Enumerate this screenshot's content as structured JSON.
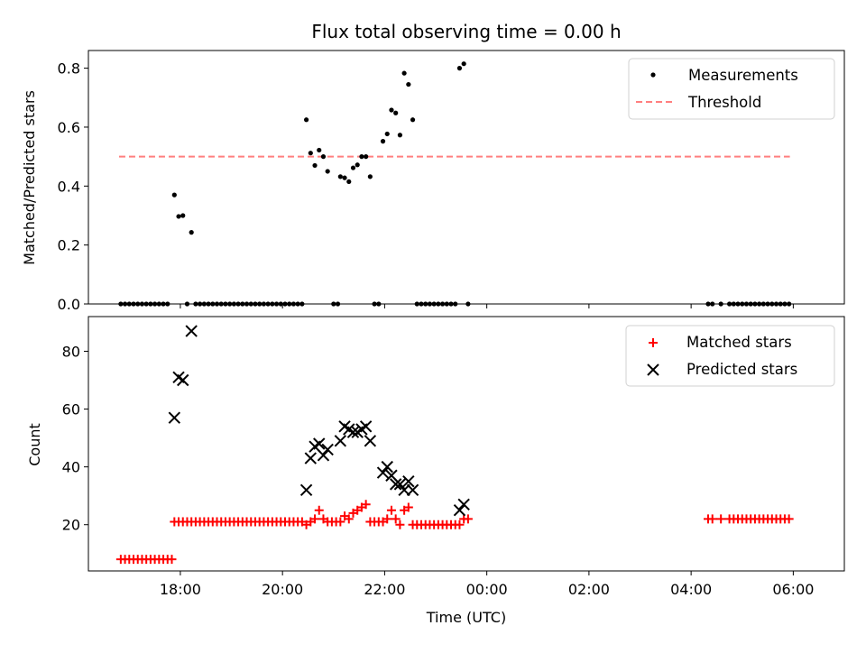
{
  "chart_data": [
    {
      "type": "scatter",
      "title": "Flux total observing time = 0.00 h",
      "ylabel": "Matched/Predicted stars",
      "xlabel": "",
      "ylim": [
        0,
        0.86
      ],
      "xlim": [
        "16:12",
        "07:00"
      ],
      "yticks": [
        "0.0",
        "0.2",
        "0.4",
        "0.6",
        "0.8"
      ],
      "xticks": [
        "18:00",
        "20:00",
        "22:00",
        "00:00",
        "02:00",
        "04:00",
        "06:00"
      ],
      "legend_position": "upper-right",
      "threshold": 0.5,
      "threshold_range": [
        "16:48",
        "05:56"
      ],
      "colors": {
        "measurements": "#000000",
        "threshold": "#ff7f7f"
      },
      "series": [
        {
          "name": "Measurements",
          "points": [
            [
              "16:50",
              0
            ],
            [
              "16:55",
              0
            ],
            [
              "17:00",
              0
            ],
            [
              "17:05",
              0
            ],
            [
              "17:10",
              0
            ],
            [
              "17:15",
              0
            ],
            [
              "17:20",
              0
            ],
            [
              "17:25",
              0
            ],
            [
              "17:30",
              0
            ],
            [
              "17:35",
              0
            ],
            [
              "17:40",
              0
            ],
            [
              "17:45",
              0
            ],
            [
              "17:53",
              0.37
            ],
            [
              "17:58",
              0.297
            ],
            [
              "18:03",
              0.3
            ],
            [
              "18:13",
              0.243
            ],
            [
              "18:08",
              0
            ],
            [
              "18:18",
              0
            ],
            [
              "18:23",
              0
            ],
            [
              "18:28",
              0
            ],
            [
              "18:33",
              0
            ],
            [
              "18:38",
              0
            ],
            [
              "18:43",
              0
            ],
            [
              "18:48",
              0
            ],
            [
              "18:53",
              0
            ],
            [
              "18:58",
              0
            ],
            [
              "19:03",
              0
            ],
            [
              "19:08",
              0
            ],
            [
              "19:13",
              0
            ],
            [
              "19:18",
              0
            ],
            [
              "19:23",
              0
            ],
            [
              "19:28",
              0
            ],
            [
              "19:33",
              0
            ],
            [
              "19:38",
              0
            ],
            [
              "19:43",
              0
            ],
            [
              "19:48",
              0
            ],
            [
              "19:53",
              0
            ],
            [
              "19:58",
              0
            ],
            [
              "20:03",
              0
            ],
            [
              "20:08",
              0
            ],
            [
              "20:13",
              0
            ],
            [
              "20:18",
              0
            ],
            [
              "20:23",
              0
            ],
            [
              "20:28",
              0.625
            ],
            [
              "20:33",
              0.512
            ],
            [
              "20:38",
              0.47
            ],
            [
              "20:43",
              0.522
            ],
            [
              "20:48",
              0.5
            ],
            [
              "20:53",
              0.45
            ],
            [
              "21:00",
              0
            ],
            [
              "21:05",
              0
            ],
            [
              "21:08",
              0.432
            ],
            [
              "21:13",
              0.428
            ],
            [
              "21:18",
              0.415
            ],
            [
              "21:23",
              0.462
            ],
            [
              "21:28",
              0.472
            ],
            [
              "21:33",
              0.5
            ],
            [
              "21:38",
              0.5
            ],
            [
              "21:43",
              0.432
            ],
            [
              "21:48",
              0
            ],
            [
              "21:53",
              0
            ],
            [
              "21:58",
              0.552
            ],
            [
              "22:03",
              0.577
            ],
            [
              "22:08",
              0.658
            ],
            [
              "22:13",
              0.648
            ],
            [
              "22:18",
              0.573
            ],
            [
              "22:23",
              0.783
            ],
            [
              "22:28",
              0.745
            ],
            [
              "22:33",
              0.625
            ],
            [
              "22:38",
              0
            ],
            [
              "22:43",
              0
            ],
            [
              "22:48",
              0
            ],
            [
              "22:53",
              0
            ],
            [
              "22:58",
              0
            ],
            [
              "23:03",
              0
            ],
            [
              "23:08",
              0
            ],
            [
              "23:13",
              0
            ],
            [
              "23:18",
              0
            ],
            [
              "23:23",
              0
            ],
            [
              "23:28",
              0.8
            ],
            [
              "23:33",
              0.815
            ],
            [
              "23:38",
              0
            ],
            [
              "04:20",
              0
            ],
            [
              "04:25",
              0
            ],
            [
              "04:35",
              0
            ],
            [
              "04:45",
              0
            ],
            [
              "04:50",
              0
            ],
            [
              "04:55",
              0
            ],
            [
              "05:00",
              0
            ],
            [
              "05:05",
              0
            ],
            [
              "05:10",
              0
            ],
            [
              "05:15",
              0
            ],
            [
              "05:20",
              0
            ],
            [
              "05:25",
              0
            ],
            [
              "05:30",
              0
            ],
            [
              "05:35",
              0
            ],
            [
              "05:40",
              0
            ],
            [
              "05:45",
              0
            ],
            [
              "05:50",
              0
            ],
            [
              "05:55",
              0
            ]
          ]
        }
      ],
      "threshold_series_name": "Threshold"
    },
    {
      "type": "scatter",
      "title": "",
      "ylabel": "Count",
      "xlabel": "Time (UTC)",
      "ylim": [
        4,
        92
      ],
      "xlim": [
        "16:12",
        "07:00"
      ],
      "yticks": [
        "20",
        "40",
        "60",
        "80"
      ],
      "xticks": [
        "18:00",
        "20:00",
        "22:00",
        "00:00",
        "02:00",
        "04:00",
        "06:00"
      ],
      "legend_position": "upper-right",
      "colors": {
        "matched": "#ff0000",
        "predicted": "#000000"
      },
      "series": [
        {
          "name": "Matched stars",
          "points": [
            [
              "16:50",
              8
            ],
            [
              "16:55",
              8
            ],
            [
              "17:00",
              8
            ],
            [
              "17:05",
              8
            ],
            [
              "17:10",
              8
            ],
            [
              "17:15",
              8
            ],
            [
              "17:20",
              8
            ],
            [
              "17:25",
              8
            ],
            [
              "17:30",
              8
            ],
            [
              "17:35",
              8
            ],
            [
              "17:40",
              8
            ],
            [
              "17:45",
              8
            ],
            [
              "17:50",
              8
            ],
            [
              "17:53",
              21
            ],
            [
              "17:58",
              21
            ],
            [
              "18:03",
              21
            ],
            [
              "18:08",
              21
            ],
            [
              "18:13",
              21
            ],
            [
              "18:18",
              21
            ],
            [
              "18:23",
              21
            ],
            [
              "18:28",
              21
            ],
            [
              "18:33",
              21
            ],
            [
              "18:38",
              21
            ],
            [
              "18:43",
              21
            ],
            [
              "18:48",
              21
            ],
            [
              "18:53",
              21
            ],
            [
              "18:58",
              21
            ],
            [
              "19:03",
              21
            ],
            [
              "19:08",
              21
            ],
            [
              "19:13",
              21
            ],
            [
              "19:18",
              21
            ],
            [
              "19:23",
              21
            ],
            [
              "19:28",
              21
            ],
            [
              "19:33",
              21
            ],
            [
              "19:38",
              21
            ],
            [
              "19:43",
              21
            ],
            [
              "19:48",
              21
            ],
            [
              "19:53",
              21
            ],
            [
              "19:58",
              21
            ],
            [
              "20:03",
              21
            ],
            [
              "20:08",
              21
            ],
            [
              "20:13",
              21
            ],
            [
              "20:18",
              21
            ],
            [
              "20:23",
              21
            ],
            [
              "20:28",
              20
            ],
            [
              "20:33",
              21
            ],
            [
              "20:38",
              22
            ],
            [
              "20:43",
              25
            ],
            [
              "20:48",
              22
            ],
            [
              "20:53",
              21
            ],
            [
              "20:58",
              21
            ],
            [
              "21:03",
              21
            ],
            [
              "21:08",
              21
            ],
            [
              "21:13",
              23
            ],
            [
              "21:18",
              22
            ],
            [
              "21:23",
              24
            ],
            [
              "21:28",
              25
            ],
            [
              "21:33",
              26
            ],
            [
              "21:38",
              27
            ],
            [
              "21:43",
              21
            ],
            [
              "21:48",
              21
            ],
            [
              "21:53",
              21
            ],
            [
              "21:58",
              21
            ],
            [
              "22:03",
              22
            ],
            [
              "22:08",
              25
            ],
            [
              "22:13",
              22
            ],
            [
              "22:18",
              20
            ],
            [
              "22:23",
              25
            ],
            [
              "22:28",
              26
            ],
            [
              "22:33",
              20
            ],
            [
              "22:38",
              20
            ],
            [
              "22:43",
              20
            ],
            [
              "22:48",
              20
            ],
            [
              "22:53",
              20
            ],
            [
              "22:58",
              20
            ],
            [
              "23:03",
              20
            ],
            [
              "23:08",
              20
            ],
            [
              "23:13",
              20
            ],
            [
              "23:18",
              20
            ],
            [
              "23:23",
              20
            ],
            [
              "23:28",
              20
            ],
            [
              "23:33",
              22
            ],
            [
              "23:38",
              22
            ],
            [
              "04:20",
              22
            ],
            [
              "04:25",
              22
            ],
            [
              "04:35",
              22
            ],
            [
              "04:45",
              22
            ],
            [
              "04:50",
              22
            ],
            [
              "04:55",
              22
            ],
            [
              "05:00",
              22
            ],
            [
              "05:05",
              22
            ],
            [
              "05:10",
              22
            ],
            [
              "05:15",
              22
            ],
            [
              "05:20",
              22
            ],
            [
              "05:25",
              22
            ],
            [
              "05:30",
              22
            ],
            [
              "05:35",
              22
            ],
            [
              "05:40",
              22
            ],
            [
              "05:45",
              22
            ],
            [
              "05:50",
              22
            ],
            [
              "05:55",
              22
            ]
          ]
        },
        {
          "name": "Predicted stars",
          "points": [
            [
              "17:53",
              57
            ],
            [
              "17:58",
              71
            ],
            [
              "18:03",
              70
            ],
            [
              "18:13",
              87
            ],
            [
              "20:28",
              32
            ],
            [
              "20:33",
              43
            ],
            [
              "20:38",
              47
            ],
            [
              "20:43",
              48
            ],
            [
              "20:48",
              44
            ],
            [
              "20:53",
              46
            ],
            [
              "21:08",
              49
            ],
            [
              "21:13",
              54
            ],
            [
              "21:18",
              53
            ],
            [
              "21:23",
              52
            ],
            [
              "21:28",
              52
            ],
            [
              "21:33",
              53
            ],
            [
              "21:38",
              54
            ],
            [
              "21:43",
              49
            ],
            [
              "21:58",
              38
            ],
            [
              "22:03",
              40
            ],
            [
              "22:08",
              37
            ],
            [
              "22:13",
              34
            ],
            [
              "22:18",
              34
            ],
            [
              "22:23",
              32
            ],
            [
              "22:28",
              35
            ],
            [
              "22:33",
              32
            ],
            [
              "23:28",
              25
            ],
            [
              "23:33",
              27
            ]
          ]
        }
      ]
    }
  ]
}
